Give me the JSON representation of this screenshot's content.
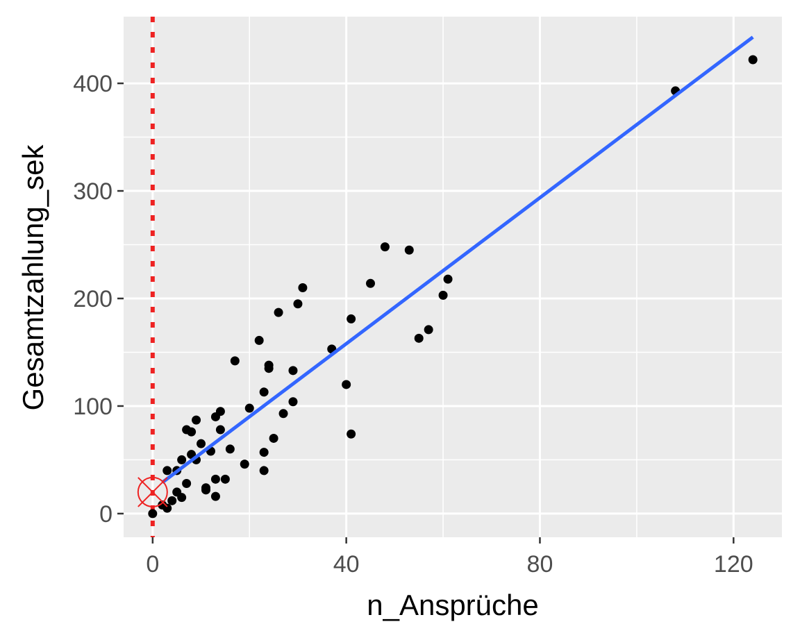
{
  "chart_data": {
    "type": "scatter",
    "title": "",
    "xlabel": "n_Ansprüche",
    "ylabel": "Gesamtzahlung_sek",
    "xlim": [
      -6,
      130
    ],
    "ylim": [
      -22,
      462
    ],
    "x_ticks": [
      0,
      40,
      80,
      120
    ],
    "x_tick_labels": [
      "0",
      "40",
      "80",
      "120"
    ],
    "y_ticks": [
      0,
      100,
      200,
      300,
      400
    ],
    "y_tick_labels": [
      "0",
      "100",
      "200",
      "300",
      "400"
    ],
    "grid": true,
    "legend": "none",
    "points": [
      [
        0,
        0
      ],
      [
        2,
        8
      ],
      [
        3,
        5
      ],
      [
        3,
        40
      ],
      [
        4,
        12
      ],
      [
        5,
        20
      ],
      [
        5,
        40
      ],
      [
        6,
        15
      ],
      [
        6,
        50
      ],
      [
        7,
        28
      ],
      [
        7,
        78
      ],
      [
        8,
        55
      ],
      [
        8,
        76
      ],
      [
        9,
        50
      ],
      [
        9,
        87
      ],
      [
        10,
        65
      ],
      [
        11,
        22
      ],
      [
        11,
        24
      ],
      [
        12,
        58
      ],
      [
        13,
        16
      ],
      [
        13,
        32
      ],
      [
        13,
        90
      ],
      [
        14,
        95
      ],
      [
        14,
        78
      ],
      [
        15,
        32
      ],
      [
        16,
        60
      ],
      [
        17,
        142
      ],
      [
        19,
        46
      ],
      [
        20,
        98
      ],
      [
        22,
        161
      ],
      [
        23,
        40
      ],
      [
        23,
        57
      ],
      [
        23,
        113
      ],
      [
        24,
        135
      ],
      [
        24,
        138
      ],
      [
        25,
        70
      ],
      [
        26,
        187
      ],
      [
        27,
        93
      ],
      [
        29,
        104
      ],
      [
        29,
        133
      ],
      [
        30,
        195
      ],
      [
        31,
        210
      ],
      [
        37,
        153
      ],
      [
        40,
        120
      ],
      [
        41,
        74
      ],
      [
        41,
        181
      ],
      [
        45,
        214
      ],
      [
        48,
        248
      ],
      [
        53,
        245
      ],
      [
        55,
        163
      ],
      [
        57,
        171
      ],
      [
        60,
        203
      ],
      [
        61,
        218
      ],
      [
        108,
        393
      ],
      [
        124,
        422
      ]
    ],
    "fit_line": {
      "x": [
        2,
        124
      ],
      "y": [
        29,
        443
      ],
      "color": "#3366ff"
    },
    "vline": {
      "x": 0,
      "color": "#ee2222",
      "style": "dotted"
    },
    "highlight_point": {
      "x": 0,
      "y": 20,
      "color": "#ee2222"
    },
    "colors": {
      "panel": "#ebebeb",
      "grid": "#ffffff",
      "points": "#000000"
    }
  }
}
